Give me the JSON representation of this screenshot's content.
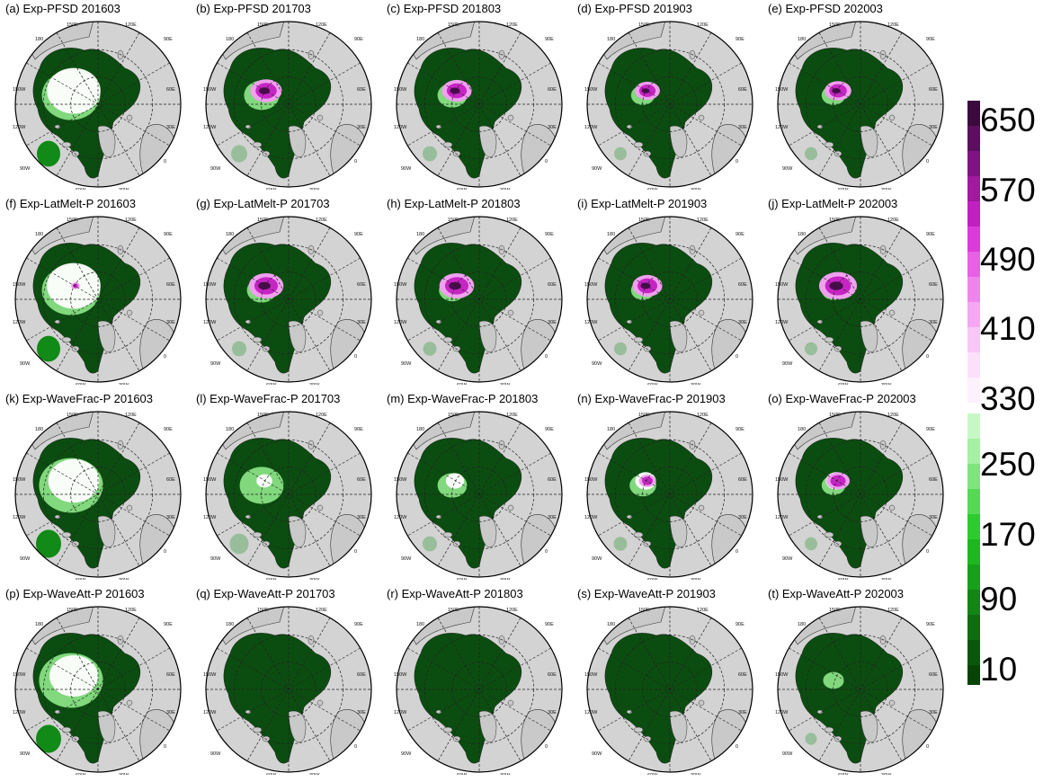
{
  "panels": [
    {
      "title": "(a) Exp-PFSD 201603",
      "pink": 0,
      "white": 0.85,
      "lightgreen": 0.7
    },
    {
      "title": "(b) Exp-PFSD 201703",
      "pink": 0.75,
      "white": 0.3,
      "lightgreen": 0.3
    },
    {
      "title": "(c) Exp-PFSD 201803",
      "pink": 0.7,
      "white": 0.2,
      "lightgreen": 0.2
    },
    {
      "title": "(d) Exp-PFSD 201903",
      "pink": 0.55,
      "white": 0.15,
      "lightgreen": 0.1
    },
    {
      "title": "(e) Exp-PFSD 202003",
      "pink": 0.6,
      "white": 0.15,
      "lightgreen": 0.1
    },
    {
      "title": "(f) Exp-LatMelt-P 201603",
      "pink": 0.05,
      "white": 0.85,
      "lightgreen": 0.7
    },
    {
      "title": "(g) Exp-LatMelt-P 201703",
      "pink": 0.85,
      "white": 0.2,
      "lightgreen": 0.2
    },
    {
      "title": "(h) Exp-LatMelt-P 201803",
      "pink": 0.85,
      "white": 0.2,
      "lightgreen": 0.15
    },
    {
      "title": "(i) Exp-LatMelt-P 201903",
      "pink": 0.7,
      "white": 0.15,
      "lightgreen": 0.1
    },
    {
      "title": "(j) Exp-LatMelt-P 202003",
      "pink": 0.95,
      "white": 0.2,
      "lightgreen": 0.1
    },
    {
      "title": "(k)  Exp-WaveFrac-P 201603",
      "pink": 0,
      "white": 0.8,
      "lightgreen": 0.8
    },
    {
      "title": "(l)  Exp-WaveFrac-P 201703",
      "pink": 0,
      "white": 0.1,
      "lightgreen": 0.45
    },
    {
      "title": "(m)  Exp-WaveFrac-P 201803",
      "pink": 0,
      "white": 0.15,
      "lightgreen": 0.2
    },
    {
      "title": "(n)  Exp-WaveFrac-P 201903",
      "pink": 0.3,
      "white": 0.2,
      "lightgreen": 0.15
    },
    {
      "title": "(o)  Exp-WaveFrac-P 202003",
      "pink": 0.5,
      "white": 0.2,
      "lightgreen": 0.1
    },
    {
      "title": "(p) Exp-WaveAtt-P 201603",
      "pink": 0,
      "white": 0.75,
      "lightgreen": 0.8
    },
    {
      "title": "(q) Exp-WaveAtt-P 201703",
      "pink": 0,
      "white": 0,
      "lightgreen": 0
    },
    {
      "title": "(r) Exp-WaveAtt-P 201803",
      "pink": 0,
      "white": 0,
      "lightgreen": 0
    },
    {
      "title": "(s) Exp-WaveAtt-P 201903",
      "pink": 0,
      "white": 0,
      "lightgreen": 0
    },
    {
      "title": "(t) Exp-WaveAtt-P 202003",
      "pink": 0,
      "white": 0,
      "lightgreen": 0.05
    }
  ],
  "map_labels": {
    "top": [
      "150E",
      "180",
      "120E",
      "90E"
    ],
    "left": [
      "150W",
      "120W",
      "90W"
    ],
    "right": [
      "60E",
      "30E",
      "0"
    ],
    "bottom": [
      "60W",
      "30W"
    ]
  },
  "colorbar": {
    "labels": [
      "650",
      "570",
      "490",
      "410",
      "330",
      "250",
      "170",
      "90",
      "10"
    ],
    "colors_top": [
      "#3b0a3d",
      "#5c0f5e",
      "#7f1383",
      "#a1199f",
      "#c21fc0",
      "#dc3adb",
      "#e860e6",
      "#ef85ec",
      "#f4a8f2",
      "#f8c7f6",
      "#fbe0fa",
      "#fdf1fc"
    ],
    "colors_bottom": [
      "#c8f7c6",
      "#a6f0a3",
      "#7ee57c",
      "#55d955",
      "#2ccc2e",
      "#1db81f",
      "#17a01a",
      "#128515",
      "#0e6c11",
      "#0a560d",
      "#064406"
    ],
    "colors": {
      "ocean": "#d3d3d3",
      "ice_dark": "#0b4d10",
      "ice_mid": "#118a17",
      "ice_light": "#8ee88a",
      "white": "#ffffff",
      "pink_light": "#f0a0ef",
      "pink_mid": "#c625c4",
      "pink_dark": "#4a0b4d"
    }
  }
}
